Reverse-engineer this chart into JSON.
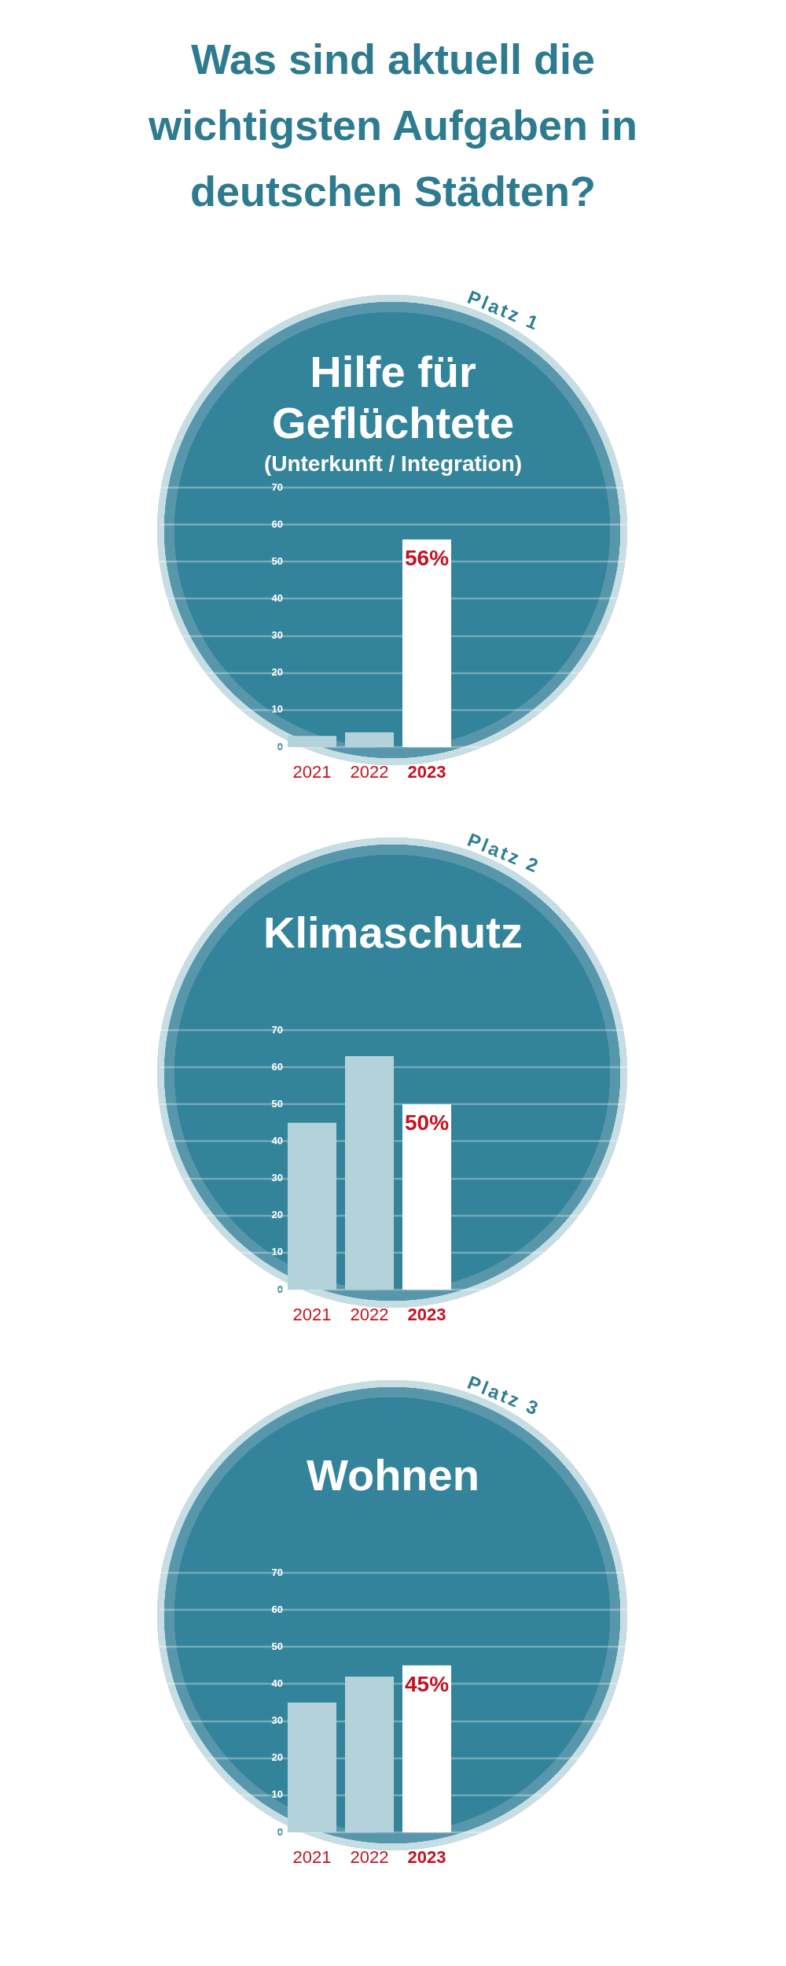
{
  "chart_data": [
    {
      "type": "other",
      "title": "Was sind aktuell die wichtigsten Aufgaben in deutschen Städten?"
    },
    {
      "type": "bar",
      "title": "Hilfe für Geflüchtete",
      "subtitle": "(Unterkunft / Integration)",
      "annotations": [
        "Platz 1"
      ],
      "categories": [
        "2021",
        "2022",
        "2023"
      ],
      "values": [
        3,
        4,
        56
      ],
      "colors": [
        "#b4d2da",
        "#b4d2da",
        "#ffffff"
      ],
      "value_labels": [
        null,
        null,
        "56%"
      ],
      "ylim": [
        0,
        70
      ],
      "yticks": [
        0,
        10,
        20,
        30,
        40,
        50,
        60,
        70
      ],
      "grid": "y"
    },
    {
      "type": "bar",
      "title": "Klimaschutz",
      "annotations": [
        "Platz 2"
      ],
      "categories": [
        "2021",
        "2022",
        "2023"
      ],
      "values": [
        45,
        63,
        50
      ],
      "colors": [
        "#b4d2da",
        "#b4d2da",
        "#ffffff"
      ],
      "value_labels": [
        null,
        null,
        "50%"
      ],
      "ylim": [
        0,
        70
      ],
      "yticks": [
        0,
        10,
        20,
        30,
        40,
        50,
        60,
        70
      ],
      "grid": "y"
    },
    {
      "type": "bar",
      "title": "Wohnen",
      "annotations": [
        "Platz 3"
      ],
      "categories": [
        "2021",
        "2022",
        "2023"
      ],
      "values": [
        35,
        42,
        45
      ],
      "colors": [
        "#b4d2da",
        "#b4d2da",
        "#ffffff"
      ],
      "value_labels": [
        null,
        null,
        "45%"
      ],
      "ylim": [
        0,
        70
      ],
      "yticks": [
        0,
        10,
        20,
        30,
        40,
        50,
        60,
        70
      ],
      "grid": "y"
    }
  ]
}
